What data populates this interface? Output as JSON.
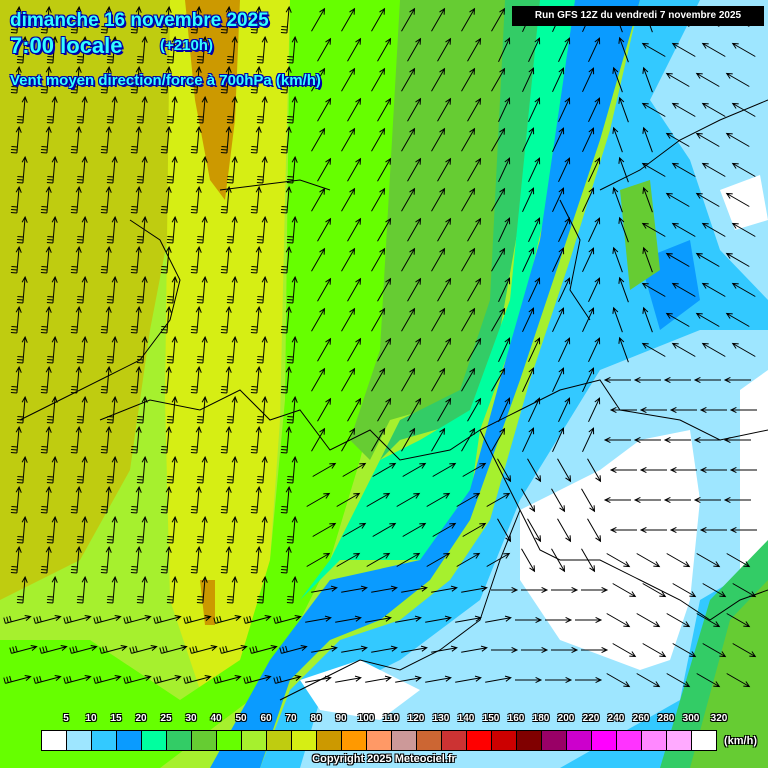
{
  "header": {
    "date": "dimanche 16 novembre 2025",
    "time": "7:00 locale",
    "offset": "(+210h)",
    "parameter": "Vent moyen direction/force à 700hPa (km/h)",
    "run": "Run GFS 12Z du vendredi 7 novembre 2025"
  },
  "legend": {
    "unit": "(km/h)",
    "labels": [
      "5",
      "10",
      "15",
      "20",
      "25",
      "30",
      "40",
      "50",
      "60",
      "70",
      "80",
      "90",
      "100",
      "110",
      "120",
      "130",
      "140",
      "150",
      "160",
      "180",
      "200",
      "220",
      "240",
      "260",
      "280",
      "300",
      "320"
    ],
    "colors": [
      "#ffffff",
      "#9ee6ff",
      "#33c9ff",
      "#0a9bff",
      "#00ff9f",
      "#33cc66",
      "#66cc33",
      "#66ff00",
      "#a6f02e",
      "#bfcc10",
      "#d6ee14",
      "#cc9900",
      "#ff9900",
      "#ff9966",
      "#cc9999",
      "#cc6633",
      "#cc3333",
      "#ff0000",
      "#cc0000",
      "#800000",
      "#990066",
      "#cc00cc",
      "#ff00ff",
      "#ff33ff",
      "#ff88ff",
      "#ffaaff",
      "#ffffff"
    ]
  },
  "copyright": "Copyright 2025 Meteociel.fr"
}
